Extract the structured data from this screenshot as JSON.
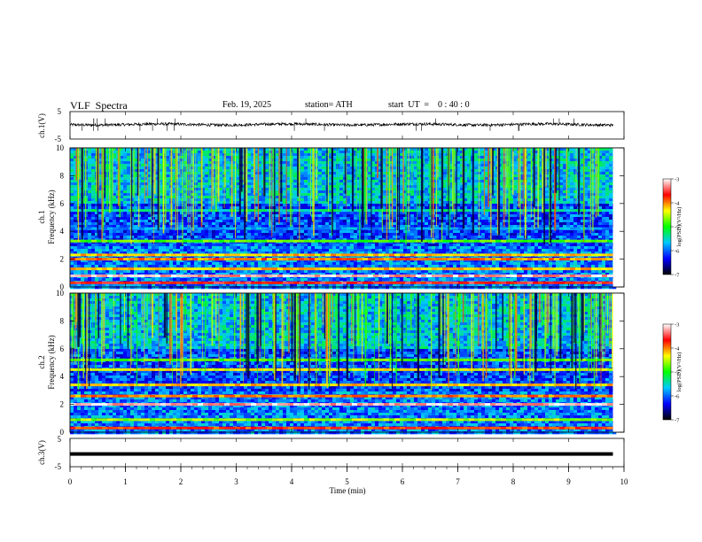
{
  "header": {
    "title": "VLF  Spectra",
    "date": "Feb. 19, 2025",
    "station": "station= ATH",
    "start_ut": "start  UT  =    0 : 40 : 0"
  },
  "chart_data": [
    {
      "type": "line",
      "name": "ch1-waveform",
      "ylabel": "ch.1(V)",
      "ylim": [
        -5,
        5
      ],
      "yticks": [
        "5",
        "-5"
      ],
      "x_range_min": [
        0,
        9.8
      ],
      "mean_level_v": 0.3,
      "noise_amplitude_v": 0.5,
      "spike_count": 25
    },
    {
      "type": "heatmap",
      "name": "ch1-spectrogram",
      "ylabel": "ch.1\nFrequency  (kHz)",
      "ylim": [
        0,
        10
      ],
      "yticks": [
        "0",
        "2",
        "4",
        "6",
        "8",
        "10"
      ],
      "x_range_min": [
        0,
        9.8
      ],
      "bands": [
        {
          "f_khz": 0.3,
          "level": 0.85
        },
        {
          "f_khz": 0.8,
          "level": 0.95
        },
        {
          "f_khz": 1.3,
          "level": 0.7
        },
        {
          "f_khz": 2.0,
          "level": 0.75
        },
        {
          "f_khz": 2.3,
          "level": 0.7
        },
        {
          "f_khz": 3.3,
          "level": 0.55
        },
        {
          "f_khz": 4.2,
          "level": 0.3
        },
        {
          "f_khz": 5.5,
          "level": 0.4
        }
      ],
      "colorbar": {
        "label": "log(PSD)(V²/Hz)",
        "range": [
          -7,
          -3
        ],
        "ticks": [
          "-3",
          "-4",
          "-5",
          "-6",
          "-7"
        ]
      }
    },
    {
      "type": "heatmap",
      "name": "ch2-spectrogram",
      "ylabel": "ch.2\nFrequency  (kHz)",
      "ylim": [
        0,
        10
      ],
      "yticks": [
        "0",
        "2",
        "4",
        "6",
        "8",
        "10"
      ],
      "x_range_min": [
        0,
        9.8
      ],
      "bands": [
        {
          "f_khz": 0.3,
          "level": 0.8
        },
        {
          "f_khz": 0.9,
          "level": 0.6
        },
        {
          "f_khz": 2.0,
          "level": 0.95
        },
        {
          "f_khz": 2.6,
          "level": 0.75
        },
        {
          "f_khz": 3.4,
          "level": 0.7
        },
        {
          "f_khz": 4.5,
          "level": 0.65
        },
        {
          "f_khz": 5.2,
          "level": 0.55
        }
      ],
      "colorbar": {
        "label": "log(PSD)(V²/Hz)",
        "range": [
          -7,
          -3
        ],
        "ticks": [
          "-3",
          "-4",
          "-5",
          "-6",
          "-7"
        ]
      }
    },
    {
      "type": "line",
      "name": "ch3-waveform",
      "ylabel": "ch.3(V)",
      "ylim": [
        -5,
        5
      ],
      "yticks": [
        "5",
        "-5"
      ],
      "x_range_min": [
        0,
        9.8
      ],
      "mean_level_v": -0.5
    }
  ],
  "xaxis": {
    "label": "Time  (min)",
    "range": [
      0,
      10
    ],
    "ticks": [
      "0",
      "1",
      "2",
      "3",
      "4",
      "5",
      "6",
      "7",
      "8",
      "9",
      "10"
    ]
  },
  "colors": {
    "colorbar_stops": [
      "#000000",
      "#0000ff",
      "#00c8ff",
      "#00ff00",
      "#ffff00",
      "#ff0000",
      "#ffffff"
    ]
  }
}
